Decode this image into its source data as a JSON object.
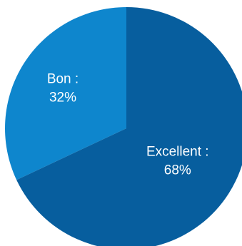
{
  "chart_data": {
    "type": "pie",
    "slices": [
      {
        "label": "Bon",
        "value": 32,
        "display": "32%",
        "color": "#0e86cd"
      },
      {
        "label": "Excellent",
        "value": 68,
        "display": "68%",
        "color": "#075e9e"
      }
    ],
    "start_angle_deg": 0,
    "direction": "counterclockwise",
    "label_format": "{label} :",
    "title": "",
    "legend": "none"
  }
}
